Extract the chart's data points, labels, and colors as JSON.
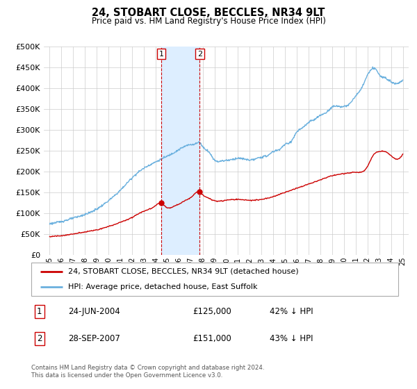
{
  "title": "24, STOBART CLOSE, BECCLES, NR34 9LT",
  "subtitle": "Price paid vs. HM Land Registry's House Price Index (HPI)",
  "legend_line1": "24, STOBART CLOSE, BECCLES, NR34 9LT (detached house)",
  "legend_line2": "HPI: Average price, detached house, East Suffolk",
  "footer1": "Contains HM Land Registry data © Crown copyright and database right 2024.",
  "footer2": "This data is licensed under the Open Government Licence v3.0.",
  "sale1_label": "1",
  "sale1_date": "24-JUN-2004",
  "sale1_price": "£125,000",
  "sale1_hpi": "42% ↓ HPI",
  "sale2_label": "2",
  "sale2_date": "28-SEP-2007",
  "sale2_price": "£151,000",
  "sale2_hpi": "43% ↓ HPI",
  "sale1_x": 2004.48,
  "sale1_y": 125000,
  "sale2_x": 2007.74,
  "sale2_y": 151000,
  "vline1_x": 2004.48,
  "vline2_x": 2007.74,
  "hpi_color": "#6ab0de",
  "price_color": "#cc0000",
  "sale_dot_color": "#cc0000",
  "vline_color": "#cc0000",
  "shade_color": "#ddeeff",
  "grid_color": "#cccccc",
  "bg_color": "#ffffff",
  "ylim": [
    0,
    500000
  ],
  "yticks": [
    0,
    50000,
    100000,
    150000,
    200000,
    250000,
    300000,
    350000,
    400000,
    450000,
    500000
  ],
  "xlim": [
    1994.5,
    2025.5
  ],
  "xticks": [
    1995,
    1996,
    1997,
    1998,
    1999,
    2000,
    2001,
    2002,
    2003,
    2004,
    2005,
    2006,
    2007,
    2008,
    2009,
    2010,
    2011,
    2012,
    2013,
    2014,
    2015,
    2016,
    2017,
    2018,
    2019,
    2020,
    2021,
    2022,
    2023,
    2024,
    2025
  ],
  "hpi_anchors_x": [
    1995,
    1996,
    1997,
    1998,
    1999,
    2000,
    2001,
    2002,
    2003,
    2004,
    2004.5,
    2005,
    2006,
    2007,
    2007.5,
    2007.75,
    2008,
    2008.5,
    2009,
    2009.5,
    2010,
    2010.5,
    2011,
    2011.5,
    2012,
    2012.5,
    2013,
    2013.5,
    2014,
    2014.5,
    2015,
    2015.5,
    2016,
    2016.5,
    2017,
    2017.5,
    2018,
    2018.5,
    2019,
    2019.5,
    2020,
    2020.5,
    2021,
    2021.5,
    2022,
    2022.25,
    2022.5,
    2022.75,
    2023,
    2023.5,
    2024,
    2024.5,
    2025
  ],
  "hpi_anchors_y": [
    75000,
    80000,
    88000,
    97000,
    110000,
    130000,
    155000,
    185000,
    208000,
    223000,
    230000,
    237000,
    253000,
    265000,
    268000,
    270000,
    260000,
    248000,
    228000,
    225000,
    227000,
    229000,
    232000,
    230000,
    228000,
    230000,
    235000,
    238000,
    248000,
    253000,
    265000,
    272000,
    295000,
    305000,
    318000,
    325000,
    335000,
    342000,
    355000,
    357000,
    356000,
    363000,
    382000,
    400000,
    432000,
    442000,
    448000,
    445000,
    432000,
    426000,
    416000,
    412000,
    420000
  ],
  "price_anchors_x": [
    1995,
    1996,
    1997,
    1998,
    1999,
    2000,
    2001,
    2002,
    2003,
    2004,
    2004.48,
    2004.75,
    2005,
    2005.5,
    2006,
    2006.5,
    2007,
    2007.74,
    2008,
    2008.5,
    2009,
    2009.5,
    2010,
    2011,
    2012,
    2013,
    2014,
    2015,
    2016,
    2017,
    2018,
    2019,
    2020,
    2021,
    2022,
    2022.5,
    2023,
    2023.5,
    2024,
    2025
  ],
  "price_anchors_y": [
    44000,
    46000,
    50000,
    55000,
    60000,
    68000,
    78000,
    90000,
    105000,
    118000,
    125000,
    118000,
    113000,
    116000,
    122000,
    130000,
    138000,
    151000,
    144000,
    136000,
    130000,
    129000,
    131000,
    133000,
    131000,
    133000,
    140000,
    150000,
    160000,
    170000,
    180000,
    190000,
    195000,
    198000,
    212000,
    240000,
    248000,
    248000,
    238000,
    242000
  ]
}
